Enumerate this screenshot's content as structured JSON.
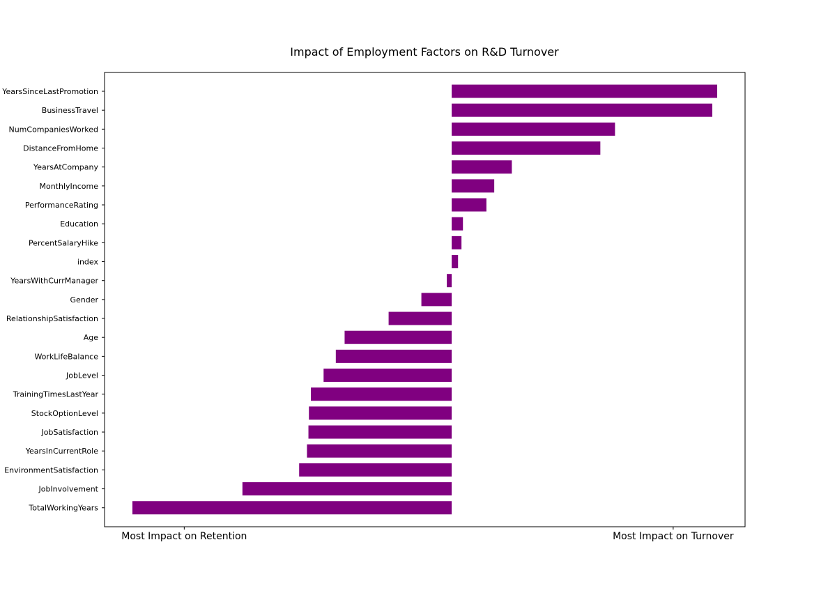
{
  "chart_data": {
    "type": "bar",
    "orientation": "horizontal",
    "title": "Impact of Employment Factors on R&D Turnover",
    "categories": [
      "YearsSinceLastPromotion",
      "BusinessTravel",
      "NumCompaniesWorked",
      "DistanceFromHome",
      "YearsAtCompany",
      "MonthlyIncome",
      "PerformanceRating",
      "Education",
      "PercentSalaryHike",
      "index",
      "YearsWithCurrManager",
      "Gender",
      "RelationshipSatisfaction",
      "Age",
      "WorkLifeBalance",
      "JobLevel",
      "TrainingTimesLastYear",
      "StockOptionLevel",
      "JobSatisfaction",
      "YearsInCurrentRole",
      "EnvironmentSatisfaction",
      "JobInvolvement",
      "TotalWorkingYears"
    ],
    "values": [
      0.543,
      0.533,
      0.334,
      0.304,
      0.123,
      0.087,
      0.071,
      0.023,
      0.02,
      0.013,
      -0.01,
      -0.062,
      -0.129,
      -0.219,
      -0.237,
      -0.262,
      -0.288,
      -0.292,
      -0.293,
      -0.296,
      -0.312,
      -0.428,
      -0.653
    ],
    "xlim": [
      -0.71,
      0.6
    ],
    "x_ticks": [
      {
        "value": -0.547,
        "label": "Most Impact on Retention"
      },
      {
        "value": 0.453,
        "label": "Most Impact on Turnover"
      }
    ],
    "bar_color": "#800080",
    "xlabel": "",
    "ylabel": ""
  }
}
